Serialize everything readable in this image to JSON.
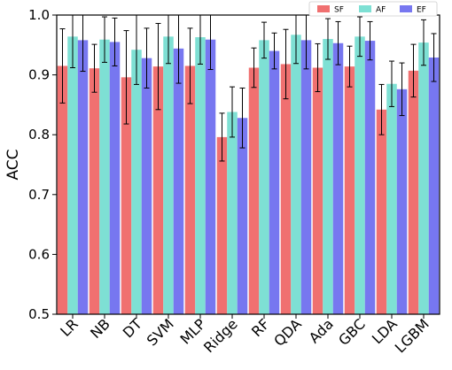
{
  "chart_data": {
    "type": "bar",
    "ylabel": "ACC",
    "xlabel": "",
    "ylim": [
      0.5,
      1.0
    ],
    "yticks": [
      "0.5",
      "0.6",
      "0.7",
      "0.8",
      "0.9",
      "1.0"
    ],
    "legend_position": "top-right",
    "categories": [
      "LR",
      "NB",
      "DT",
      "SVM",
      "MLP",
      "Ridge",
      "RF",
      "QDA",
      "Ada",
      "GBC",
      "LDA",
      "LGBM"
    ],
    "series": [
      {
        "name": "SF",
        "color": "#f07070",
        "values": [
          0.915,
          0.911,
          0.896,
          0.914,
          0.915,
          0.796,
          0.912,
          0.918,
          0.912,
          0.914,
          0.842,
          0.907
        ],
        "errors": [
          0.062,
          0.04,
          0.078,
          0.072,
          0.063,
          0.04,
          0.033,
          0.058,
          0.04,
          0.034,
          0.042,
          0.044
        ]
      },
      {
        "name": "AF",
        "color": "#7ee0d4",
        "values": [
          0.964,
          0.959,
          0.942,
          0.964,
          0.963,
          0.838,
          0.958,
          0.967,
          0.96,
          0.964,
          0.885,
          0.954
        ],
        "errors": [
          0.052,
          0.038,
          0.058,
          0.045,
          0.045,
          0.042,
          0.03,
          0.048,
          0.034,
          0.033,
          0.038,
          0.038
        ]
      },
      {
        "name": "EF",
        "color": "#7777f0",
        "values": [
          0.958,
          0.955,
          0.928,
          0.944,
          0.959,
          0.828,
          0.94,
          0.958,
          0.953,
          0.957,
          0.876,
          0.929
        ],
        "errors": [
          0.052,
          0.04,
          0.05,
          0.058,
          0.05,
          0.05,
          0.03,
          0.048,
          0.036,
          0.032,
          0.044,
          0.04
        ]
      }
    ]
  }
}
